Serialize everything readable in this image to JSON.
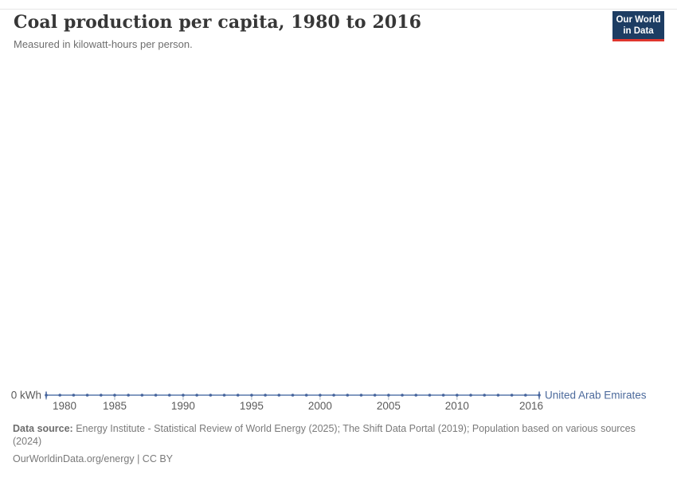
{
  "header": {
    "title": "Coal production per capita, 1980 to 2016",
    "subtitle": "Measured in kilowatt-hours per person.",
    "logo": {
      "line1": "Our World",
      "line2": "in Data"
    }
  },
  "chart_data": {
    "type": "line",
    "title": "Coal production per capita, 1980 to 2016",
    "subtitle": "Measured in kilowatt-hours per person.",
    "xlabel": "",
    "ylabel": "kWh",
    "xlim": [
      1980,
      2016
    ],
    "ylim": [
      0,
      0
    ],
    "grid": false,
    "legend_position": "end-of-line",
    "x_ticks": [
      1980,
      1985,
      1990,
      1995,
      2000,
      2005,
      2010,
      2016
    ],
    "y_axis_label": "0 kWh",
    "x": [
      1980,
      1981,
      1982,
      1983,
      1984,
      1985,
      1986,
      1987,
      1988,
      1989,
      1990,
      1991,
      1992,
      1993,
      1994,
      1995,
      1996,
      1997,
      1998,
      1999,
      2000,
      2001,
      2002,
      2003,
      2004,
      2005,
      2006,
      2007,
      2008,
      2009,
      2010,
      2011,
      2012,
      2013,
      2014,
      2015,
      2016
    ],
    "series": [
      {
        "name": "United Arab Emirates",
        "color": "#4C6A9C",
        "values": [
          0,
          0,
          0,
          0,
          0,
          0,
          0,
          0,
          0,
          0,
          0,
          0,
          0,
          0,
          0,
          0,
          0,
          0,
          0,
          0,
          0,
          0,
          0,
          0,
          0,
          0,
          0,
          0,
          0,
          0,
          0,
          0,
          0,
          0,
          0,
          0,
          0
        ]
      }
    ]
  },
  "footer": {
    "data_source_label": "Data source:",
    "data_source_text": " Energy Institute - Statistical Review of World Energy (2025); The Shift Data Portal (2019); Population based on various sources (2024)",
    "license_line": "OurWorldinData.org/energy | CC BY"
  },
  "colors": {
    "series_line": "#5878AB",
    "series_marker": "#44639C",
    "entity_label": "#4C6A9C",
    "tick_mark": "#A9B4C2",
    "tick_label": "#5B5B5B",
    "logo_bg": "#1D3D63",
    "logo_accent": "#E0362E"
  }
}
